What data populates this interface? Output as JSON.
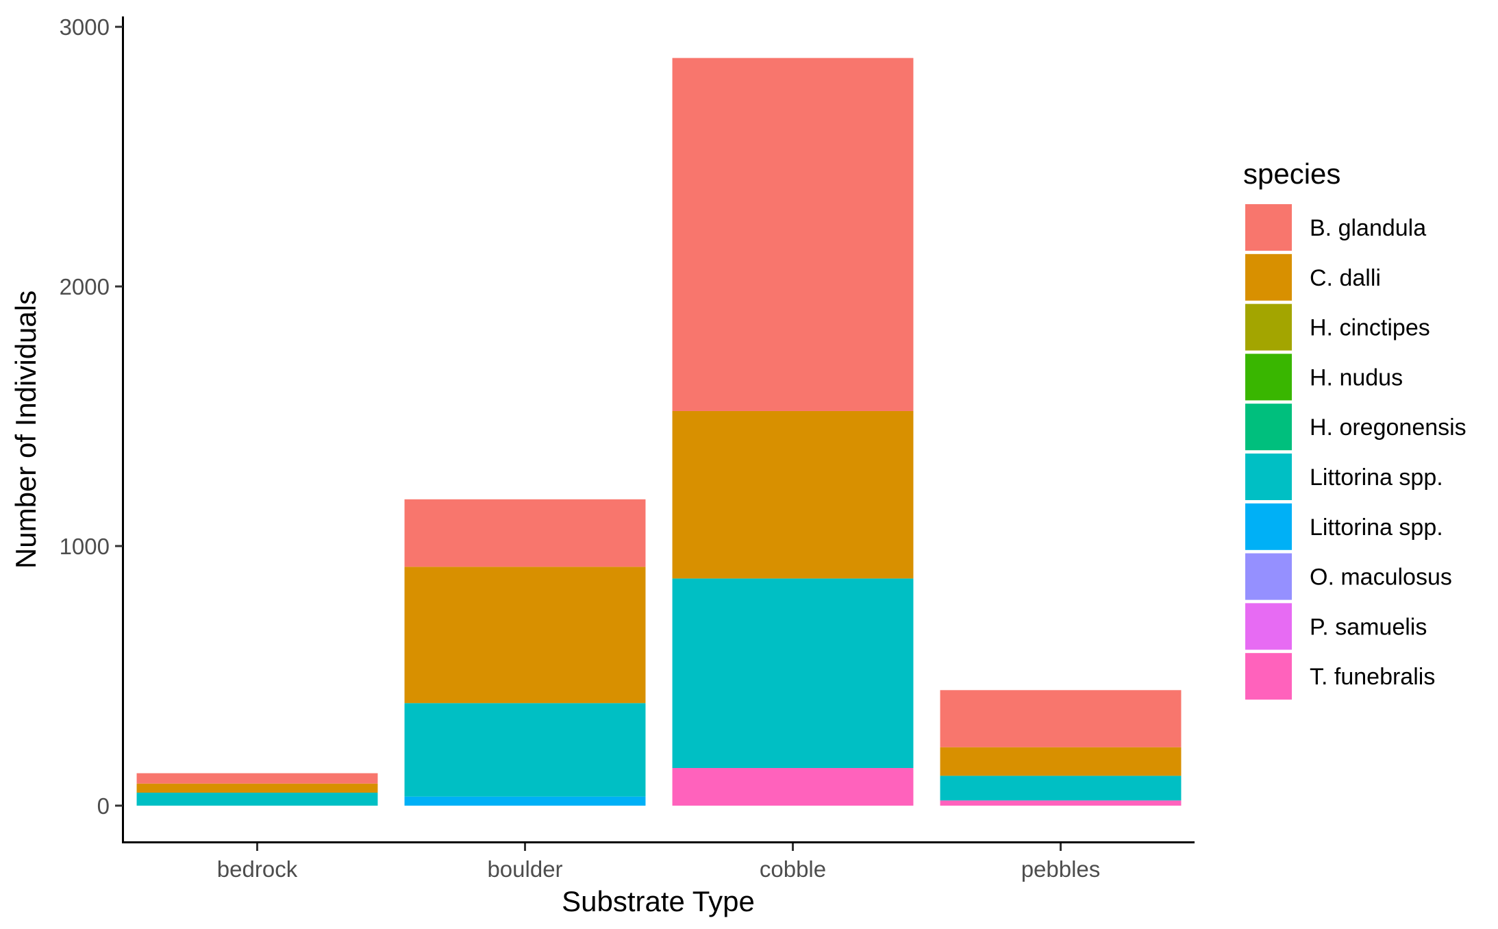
{
  "chart_data": {
    "type": "bar",
    "stacked": true,
    "xlabel": "Substrate Type",
    "ylabel": "Number of Individuals",
    "ylim": [
      -140,
      3040
    ],
    "yticks": [
      0,
      1000,
      2000,
      3000
    ],
    "yticklabels": [
      "0",
      "1000",
      "2000",
      "3000"
    ],
    "categories": [
      "bedrock",
      "boulder",
      "cobble",
      "pebbles"
    ],
    "legend_title": "species",
    "legend_position": "right",
    "grid": false,
    "series": [
      {
        "name": "B. glandula",
        "color": "#F8766D",
        "values": [
          40,
          260,
          1360,
          220
        ]
      },
      {
        "name": "C. dalli",
        "color": "#D89000",
        "values": [
          35,
          525,
          645,
          110
        ]
      },
      {
        "name": "H. cinctipes",
        "color": "#A3A500",
        "values": [
          0,
          0,
          0,
          0
        ]
      },
      {
        "name": "H. nudus",
        "color": "#39B600",
        "values": [
          0,
          0,
          0,
          0
        ]
      },
      {
        "name": "H. oregonensis",
        "color": "#00BF7D",
        "values": [
          0,
          0,
          0,
          0
        ]
      },
      {
        "name": "Littorina spp.",
        "color": "#00BFC4",
        "values": [
          50,
          360,
          730,
          95
        ]
      },
      {
        "name": "Littorina spp.",
        "color": "#00B0F6",
        "values": [
          0,
          35,
          0,
          0
        ]
      },
      {
        "name": "O. maculosus",
        "color": "#9590FF",
        "values": [
          0,
          0,
          0,
          0
        ]
      },
      {
        "name": "P. samuelis",
        "color": "#E76BF3",
        "values": [
          0,
          0,
          0,
          0
        ]
      },
      {
        "name": "T. funebralis",
        "color": "#FF62BC",
        "values": [
          0,
          0,
          145,
          20
        ]
      }
    ]
  }
}
